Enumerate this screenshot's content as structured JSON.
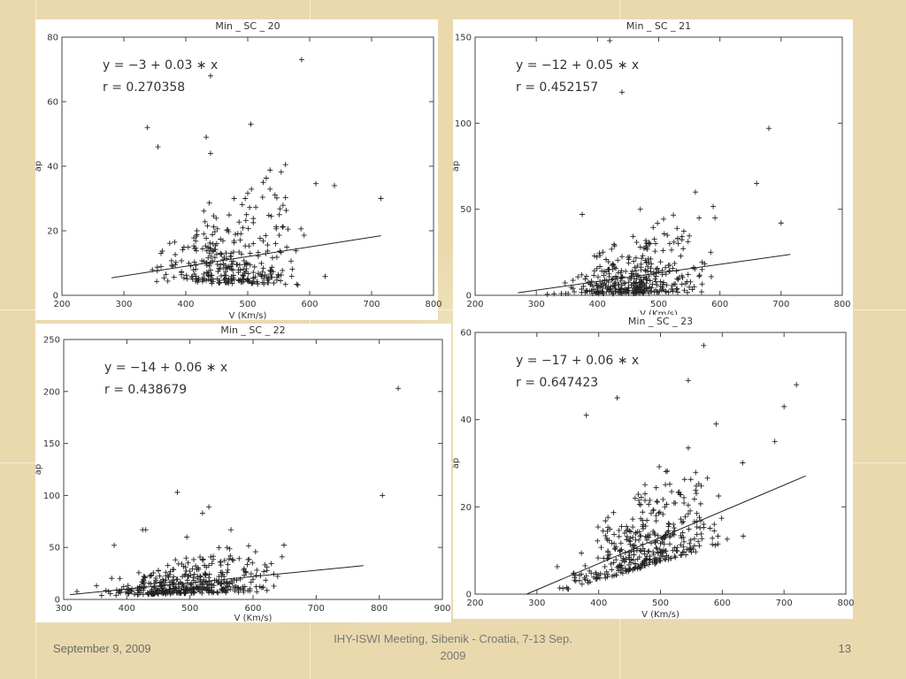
{
  "footer": {
    "date": "September 9, 2009",
    "conference": "IHY-ISWI Meeting, Sibenik - Croatia, 7-13 Sep. 2009",
    "page": "13"
  },
  "colors": {
    "points": "#222222",
    "fit_line": "#222222",
    "axis": "#444444",
    "background": "#e9d9ad"
  },
  "chart_data": [
    {
      "type": "scatter",
      "title": "Min _ SC _ 20",
      "xlabel": "V (Km/s)",
      "ylabel": "ap",
      "xlim": [
        200,
        800
      ],
      "ylim": [
        0,
        80
      ],
      "xticks": [
        200,
        300,
        400,
        500,
        600,
        700,
        800
      ],
      "yticks": [
        0,
        20,
        40,
        60,
        80
      ],
      "equation": "y = −3 + 0.03 ∗ x",
      "r": "r =  0.270358",
      "fit": {
        "intercept": -3,
        "slope": 0.03
      },
      "outliers": [
        [
          587,
          73
        ],
        [
          440,
          68
        ],
        [
          505,
          53
        ],
        [
          338,
          52
        ],
        [
          433,
          49
        ],
        [
          355,
          46
        ],
        [
          440,
          44
        ],
        [
          715,
          30
        ],
        [
          640,
          34
        ],
        [
          525,
          35
        ]
      ],
      "cloud": {
        "n": 330,
        "seed": 20,
        "xmin": 300,
        "xmax": 700,
        "xmode": 420,
        "spread_low": 3,
        "spread_high": 28
      }
    },
    {
      "type": "scatter",
      "title": "Min _ SC _ 21",
      "xlabel": "V (Km/s)",
      "ylabel": "ap",
      "xlim": [
        200,
        800
      ],
      "ylim": [
        0,
        150
      ],
      "xticks": [
        200,
        300,
        400,
        500,
        600,
        700,
        800
      ],
      "yticks": [
        0,
        50,
        100,
        150
      ],
      "equation": "y = −12 + 0.05 ∗ x",
      "r": "r =  0.452157",
      "fit": {
        "intercept": -12,
        "slope": 0.05
      },
      "outliers": [
        [
          420,
          148
        ],
        [
          440,
          118
        ],
        [
          680,
          97
        ],
        [
          660,
          65
        ],
        [
          560,
          60
        ],
        [
          375,
          47
        ],
        [
          470,
          50
        ],
        [
          700,
          42
        ]
      ],
      "cloud": {
        "n": 380,
        "seed": 21,
        "xmin": 290,
        "xmax": 700,
        "xmode": 400,
        "spread_low": 4,
        "spread_high": 38
      }
    },
    {
      "type": "scatter",
      "title": "Min _ SC _ 22",
      "xlabel": "V (Km/s)",
      "ylabel": "ap",
      "xlim": [
        300,
        900
      ],
      "ylim": [
        0,
        250
      ],
      "xticks": [
        300,
        400,
        500,
        600,
        700,
        800,
        900
      ],
      "yticks": [
        0,
        50,
        100,
        150,
        200,
        250
      ],
      "equation": "y = −14 + 0.06 ∗ x",
      "r": "r =  0.438679",
      "fit": {
        "intercept": -14,
        "slope": 0.06
      },
      "outliers": [
        [
          830,
          203
        ],
        [
          480,
          103
        ],
        [
          805,
          100
        ],
        [
          530,
          89
        ],
        [
          520,
          83
        ],
        [
          565,
          67
        ],
        [
          425,
          67
        ],
        [
          430,
          67
        ],
        [
          380,
          52
        ],
        [
          495,
          60
        ]
      ],
      "cloud": {
        "n": 420,
        "seed": 22,
        "xmin": 305,
        "xmax": 760,
        "xmode": 420,
        "spread_low": 3,
        "spread_high": 40
      }
    },
    {
      "type": "scatter",
      "title": "Min _ SC _ 23",
      "xlabel": "V (Km/s)",
      "ylabel": "ap",
      "xlim": [
        200,
        800
      ],
      "ylim": [
        0,
        60
      ],
      "xticks": [
        200,
        300,
        400,
        500,
        600,
        700,
        800
      ],
      "yticks": [
        0,
        20,
        40,
        60
      ],
      "equation": "y = −17 + 0.06 ∗ x",
      "r": "r =  0.647423",
      "fit": {
        "intercept": -17,
        "slope": 0.06
      },
      "outliers": [
        [
          570,
          57
        ],
        [
          545,
          49
        ],
        [
          720,
          48
        ],
        [
          700,
          43
        ],
        [
          430,
          45
        ],
        [
          380,
          41
        ],
        [
          590,
          39
        ],
        [
          685,
          35
        ]
      ],
      "cloud": {
        "n": 400,
        "seed": 23,
        "xmin": 285,
        "xmax": 720,
        "xmode": 410,
        "spread_low": 3,
        "spread_high": 18
      }
    }
  ]
}
